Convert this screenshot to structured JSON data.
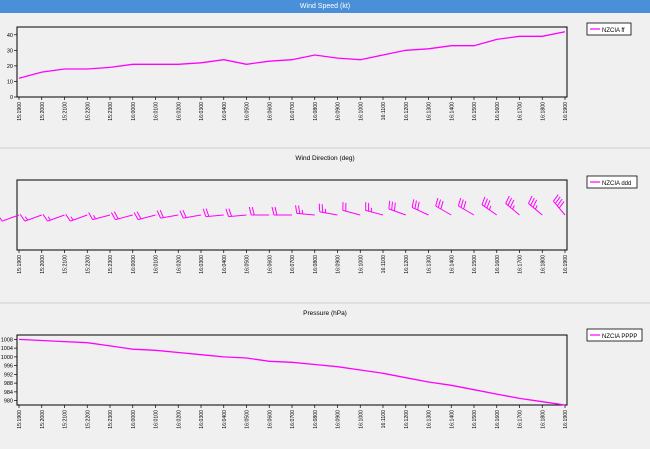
{
  "window": {
    "title": "Wind Speed  (kt)"
  },
  "colors": {
    "series": "#ff00ff",
    "axis": "#000000",
    "titlebar": "#4a90d9",
    "panel": "#f0f0f0"
  },
  "x_ticks": [
    "15:1900",
    "15:2000",
    "15:2100",
    "15:2200",
    "15:2300",
    "16:0000",
    "16:0100",
    "16:0200",
    "16:0300",
    "16:0400",
    "16:0500",
    "16:0600",
    "16:0700",
    "16:0800",
    "16:0900",
    "16:1000",
    "16:1100",
    "16:1200",
    "16:1300",
    "16:1400",
    "16:1500",
    "16:1600",
    "16:1700",
    "16:1800",
    "16:1900"
  ],
  "chart_data": [
    {
      "type": "line",
      "title": "Wind Speed  (kt)",
      "legend": "top-right",
      "ylim": [
        0,
        45
      ],
      "yticks": [
        0,
        10,
        20,
        30,
        40
      ],
      "series": [
        {
          "name": "NZCIA ff",
          "values": [
            12,
            16,
            18,
            18,
            19,
            21,
            21,
            21,
            22,
            24,
            21,
            23,
            24,
            27,
            25,
            24,
            27,
            30,
            31,
            33,
            33,
            37,
            39,
            39,
            42
          ]
        }
      ]
    },
    {
      "type": "line",
      "title": "Wind Direction  (deg)",
      "legend": "top-right",
      "series": [
        {
          "name": "NZCIA ddd",
          "values": [
            250,
            250,
            250,
            250,
            255,
            255,
            255,
            260,
            260,
            265,
            265,
            270,
            270,
            275,
            280,
            285,
            285,
            290,
            295,
            300,
            300,
            305,
            310,
            310,
            320
          ]
        }
      ]
    },
    {
      "type": "line",
      "title": "Pressure  (hPa)",
      "legend": "top-right",
      "ylim": [
        978,
        1010
      ],
      "yticks": [
        980,
        984,
        988,
        992,
        996,
        1000,
        1004,
        1008
      ],
      "series": [
        {
          "name": "NZCIA PPPP",
          "values": [
            1008,
            1007.5,
            1007,
            1006.5,
            1005,
            1003.5,
            1003,
            1002,
            1001,
            1000,
            999.5,
            998,
            997.5,
            996.5,
            995.5,
            994,
            992.5,
            990.5,
            988.5,
            987,
            985,
            983,
            981,
            979.5,
            978
          ]
        }
      ]
    }
  ]
}
